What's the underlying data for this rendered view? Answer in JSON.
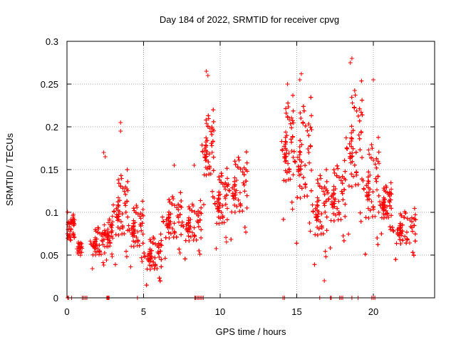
{
  "chart_data": {
    "type": "scatter",
    "title": "Day 184 of 2022, SRMTID for receiver cpvg",
    "xlabel": "GPS time / hours",
    "ylabel": "SRMTID / TECUs",
    "xlim": [
      0,
      24
    ],
    "ylim": [
      0,
      0.3
    ],
    "x_ticks": [
      "0",
      "5",
      "10",
      "15",
      "20"
    ],
    "y_ticks": [
      "0",
      "0.05",
      "0.1",
      "0.15",
      "0.2",
      "0.25",
      "0.3"
    ],
    "grid": true,
    "marker": "+",
    "color": "#ff0000",
    "series": [
      {
        "name": "SRMTID",
        "segments": [
          {
            "x0": 0.0,
            "x1": 0.5,
            "ymin": 0.06,
            "ymax": 0.105,
            "n": 50
          },
          {
            "x0": 0.6,
            "x1": 1.0,
            "ymin": 0.04,
            "ymax": 0.07,
            "n": 25
          },
          {
            "x0": 1.5,
            "x1": 2.5,
            "ymin": 0.03,
            "ymax": 0.09,
            "n": 90
          },
          {
            "x0": 2.5,
            "x1": 3.0,
            "ymin": 0.04,
            "ymax": 0.1,
            "n": 40
          },
          {
            "x0": 3.0,
            "x1": 4.0,
            "ymin": 0.03,
            "ymax": 0.16,
            "n": 110
          },
          {
            "x0": 4.0,
            "x1": 5.0,
            "ymin": 0.03,
            "ymax": 0.12,
            "n": 100
          },
          {
            "x0": 5.0,
            "x1": 6.2,
            "ymin": 0.01,
            "ymax": 0.08,
            "n": 160
          },
          {
            "x0": 6.2,
            "x1": 7.5,
            "ymin": 0.04,
            "ymax": 0.13,
            "n": 150
          },
          {
            "x0": 7.5,
            "x1": 8.8,
            "ymin": 0.04,
            "ymax": 0.12,
            "n": 130
          },
          {
            "x0": 8.8,
            "x1": 9.6,
            "ymin": 0.1,
            "ymax": 0.23,
            "n": 100
          },
          {
            "x0": 9.6,
            "x1": 10.5,
            "ymin": 0.05,
            "ymax": 0.16,
            "n": 100
          },
          {
            "x0": 10.5,
            "x1": 11.8,
            "ymin": 0.06,
            "ymax": 0.18,
            "n": 130
          },
          {
            "x0": 14.0,
            "x1": 14.8,
            "ymin": 0.08,
            "ymax": 0.25,
            "n": 110
          },
          {
            "x0": 14.8,
            "x1": 16.0,
            "ymin": 0.05,
            "ymax": 0.25,
            "n": 150
          },
          {
            "x0": 16.0,
            "x1": 17.0,
            "ymin": 0.03,
            "ymax": 0.16,
            "n": 110
          },
          {
            "x0": 17.0,
            "x1": 18.2,
            "ymin": 0.05,
            "ymax": 0.17,
            "n": 130
          },
          {
            "x0": 18.2,
            "x1": 19.3,
            "ymin": 0.06,
            "ymax": 0.27,
            "n": 130
          },
          {
            "x0": 19.3,
            "x1": 20.4,
            "ymin": 0.04,
            "ymax": 0.2,
            "n": 100
          },
          {
            "x0": 20.4,
            "x1": 21.2,
            "ymin": 0.07,
            "ymax": 0.14,
            "n": 100
          },
          {
            "x0": 21.2,
            "x1": 22.8,
            "ymin": 0.04,
            "ymax": 0.11,
            "n": 170
          }
        ],
        "outliers": [
          [
            9.1,
            0.265
          ],
          [
            9.2,
            0.26
          ],
          [
            3.5,
            0.205
          ],
          [
            3.5,
            0.195
          ],
          [
            2.4,
            0.17
          ],
          [
            2.5,
            0.165
          ],
          [
            15.3,
            0.262
          ],
          [
            15.2,
            0.255
          ],
          [
            18.6,
            0.28
          ],
          [
            18.5,
            0.275
          ],
          [
            14.4,
            0.25
          ],
          [
            20.0,
            0.255
          ],
          [
            16.8,
            0.02
          ],
          [
            17.3,
            0.12
          ],
          [
            7.0,
            0.155
          ],
          [
            8.3,
            0.155
          ]
        ],
        "zero_points": [
          0.05,
          0.1,
          0.3,
          1.0,
          1.1,
          1.2,
          1.3,
          2.6,
          2.65,
          2.7,
          2.75,
          4.6,
          8.35,
          8.4,
          8.5,
          8.6,
          8.7,
          8.8,
          8.9,
          14.1,
          14.2,
          16.5,
          17.2,
          17.25,
          17.8,
          17.9,
          18.0,
          18.6,
          19.0,
          19.9,
          20.0,
          20.1
        ]
      }
    ]
  }
}
